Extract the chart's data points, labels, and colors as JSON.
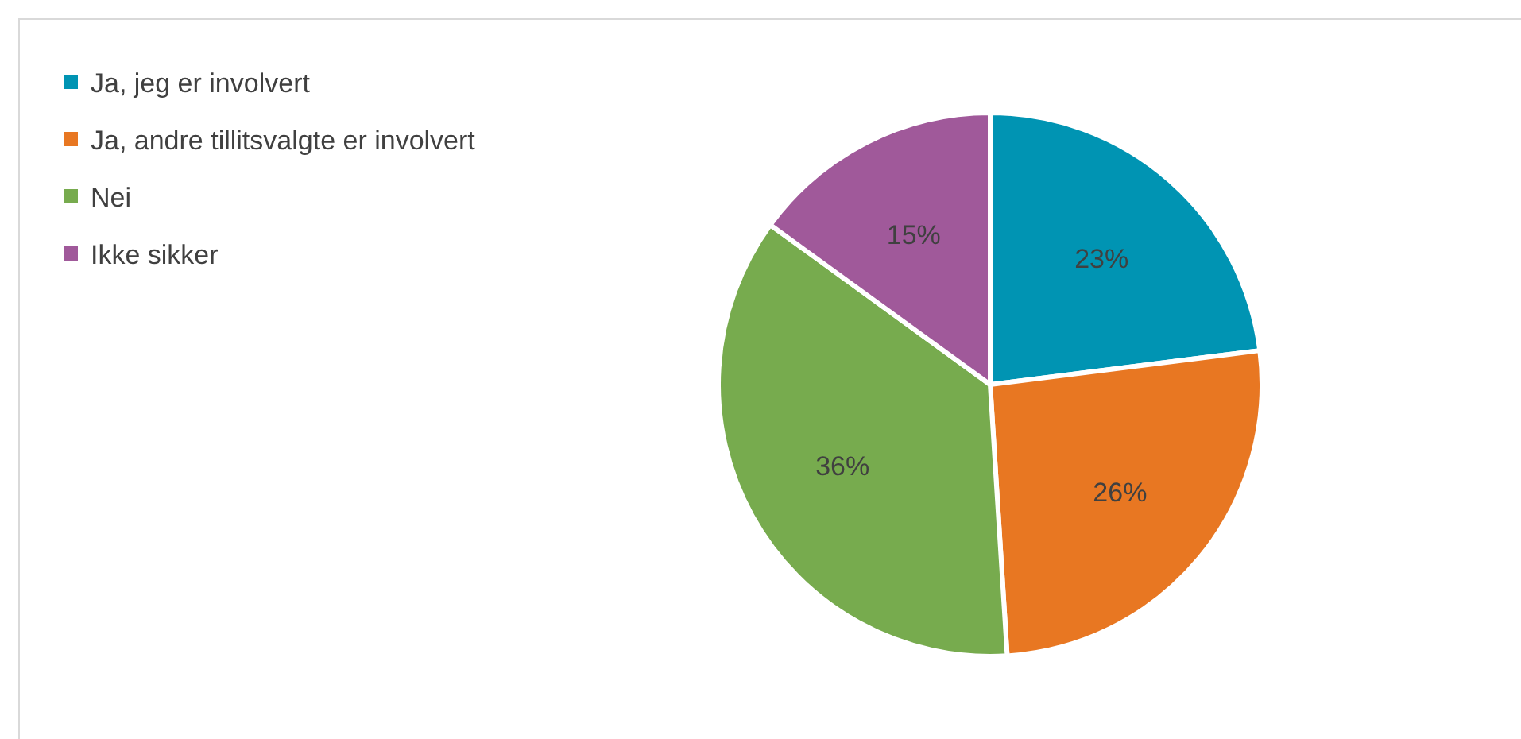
{
  "chart_data": {
    "type": "pie",
    "categories": [
      "Ja, jeg er involvert",
      "Ja, andre tillitsvalgte er involvert",
      "Nei",
      "Ikke sikker"
    ],
    "values": [
      23,
      26,
      36,
      15
    ],
    "colors": [
      "#0094b3",
      "#e87722",
      "#77ab4e",
      "#a0599a"
    ],
    "value_labels": [
      "23%",
      "26%",
      "36%",
      "15%"
    ],
    "legend": "top left"
  }
}
